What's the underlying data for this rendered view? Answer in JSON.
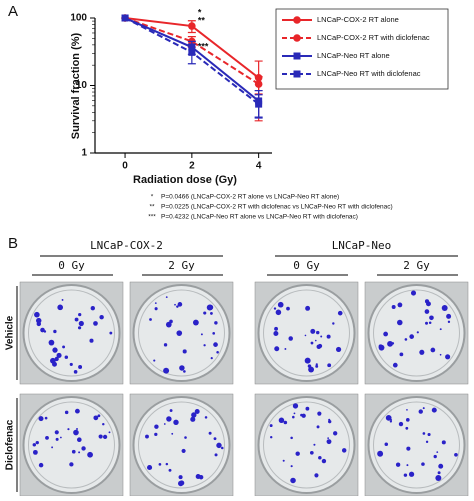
{
  "panel_a_label": "A",
  "chart_data": {
    "type": "line",
    "log_scale": true,
    "x_label": "Radiation dose (Gy)",
    "y_label": "Survival fraction (%)",
    "x": [
      0,
      2,
      4
    ],
    "xlim": [
      -0.9,
      4.4
    ],
    "xticks": [
      0,
      2,
      4
    ],
    "ylim": [
      1,
      100
    ],
    "yticks": [
      1,
      10,
      100
    ],
    "series": [
      {
        "name": "LNCaP-COX-2 RT alone",
        "color": "#e8262a",
        "dashed": false,
        "marker": "circle",
        "values": [
          100,
          76,
          13
        ],
        "errors": [
          0,
          15,
          10
        ]
      },
      {
        "name": "LNCaP-COX-2 RT with diclofenac",
        "color": "#e8262a",
        "dashed": true,
        "marker": "circle",
        "values": [
          100,
          45,
          10.5
        ],
        "errors": [
          0,
          8,
          3
        ]
      },
      {
        "name": "LNCaP-Neo RT alone",
        "color": "#2a2ab8",
        "dashed": false,
        "marker": "square",
        "values": [
          100,
          37,
          5.9
        ],
        "errors": [
          0,
          8,
          2.5
        ]
      },
      {
        "name": "LNCaP-Neo RT with diclofenac",
        "color": "#2a2ab8",
        "dashed": true,
        "marker": "square",
        "values": [
          100,
          31,
          5.3
        ],
        "errors": [
          0,
          10,
          2
        ]
      }
    ],
    "annotations": [
      "*",
      "**",
      "***"
    ]
  },
  "footnotes": [
    {
      "symbol": "*",
      "text": "P=0.0466 (LNCaP-COX-2 RT alone vs LNCaP-Neo RT alone)"
    },
    {
      "symbol": "**",
      "text": "P=0.0225 (LNCaP-COX-2 RT with diclofenac vs LNCaP-Neo RT with diclofenac)"
    },
    {
      "symbol": "***",
      "text": "P=0.4232 (LNCaP-Neo RT alone vs LNCaP-Neo RT with diclofenac)"
    }
  ],
  "panel_b": {
    "label": "B",
    "groups": [
      {
        "name": "LNCaP-COX-2",
        "doses": [
          "0 Gy",
          "2 Gy"
        ]
      },
      {
        "name": "LNCaP-Neo",
        "doses": [
          "0 Gy",
          "2 Gy"
        ]
      }
    ],
    "rows": [
      "Vehicle",
      "Diclofenac"
    ]
  }
}
